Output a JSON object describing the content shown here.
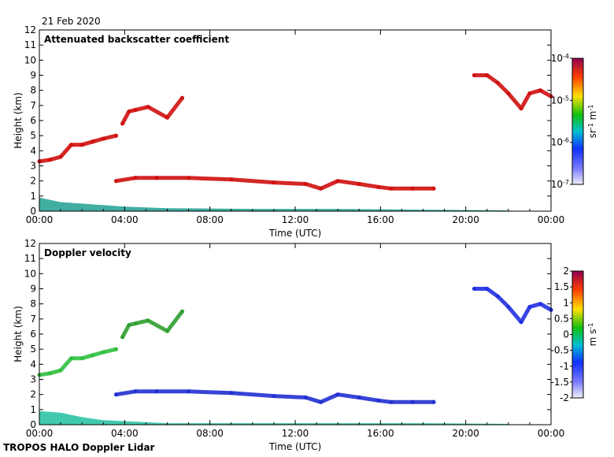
{
  "date_label": "21 Feb 2020",
  "footer": "TROPOS HALO Doppler Lidar",
  "colors": {
    "cloud_red": "#d01010",
    "aerosol_teal": "#20a090",
    "velocity_blue": "#2020e0"
  },
  "chart_data": [
    {
      "type": "heatmap",
      "title": "Attenuated backscatter coefficient",
      "xlabel": "Time (UTC)",
      "ylabel": "Height (km)",
      "x_ticks": [
        "00:00",
        "04:00",
        "08:00",
        "12:00",
        "16:00",
        "20:00",
        "00:00"
      ],
      "xlim_hours": [
        0,
        24
      ],
      "ylim": [
        0,
        12
      ],
      "y_ticks": [
        0,
        1,
        2,
        3,
        4,
        5,
        6,
        7,
        8,
        9,
        10,
        11,
        12
      ],
      "colorbar": {
        "scale": "log",
        "range": [
          1e-07,
          0.0001
        ],
        "tick_labels": [
          "10-4",
          "10-5",
          "10-6",
          "10-7"
        ],
        "unit": "sr-1 m-1"
      },
      "features": [
        {
          "name": "aerosol boundary layer",
          "color": "#20a090",
          "points": [
            [
              0,
              0.9
            ],
            [
              1,
              0.6
            ],
            [
              2,
              0.5
            ],
            [
              3,
              0.4
            ],
            [
              4,
              0.3
            ],
            [
              6,
              0.2
            ],
            [
              10,
              0.15
            ],
            [
              14,
              0.15
            ],
            [
              18,
              0.1
            ],
            [
              22,
              0.05
            ]
          ]
        },
        {
          "name": "mid-level cloud layer",
          "color": "#d01010",
          "points": [
            [
              3.6,
              2.0
            ],
            [
              4.5,
              2.2
            ],
            [
              5.5,
              2.2
            ],
            [
              7,
              2.2
            ],
            [
              9,
              2.1
            ],
            [
              11,
              1.9
            ],
            [
              12.5,
              1.8
            ],
            [
              13.2,
              1.5
            ],
            [
              14,
              2.0
            ],
            [
              15,
              1.8
            ],
            [
              15.9,
              1.6
            ],
            [
              16.5,
              1.5
            ],
            [
              17.5,
              1.5
            ],
            [
              18.5,
              1.5
            ]
          ]
        },
        {
          "name": "rising cloud layer",
          "color": "#d01010",
          "points": [
            [
              0,
              3.3
            ],
            [
              0.5,
              3.4
            ],
            [
              1,
              3.6
            ],
            [
              1.5,
              4.4
            ],
            [
              2,
              4.4
            ],
            [
              2.5,
              4.6
            ],
            [
              3,
              4.8
            ],
            [
              3.6,
              5.0
            ]
          ]
        },
        {
          "name": "upper cloud patches",
          "color": "#d01010",
          "points": [
            [
              3.9,
              5.8
            ],
            [
              4.2,
              6.6
            ],
            [
              4.5,
              6.7
            ],
            [
              5.1,
              6.9
            ],
            [
              6.0,
              6.2
            ],
            [
              6.7,
              7.5
            ]
          ]
        },
        {
          "name": "upper cloud layer",
          "color": "#d01010",
          "points": [
            [
              20.4,
              9.0
            ],
            [
              21,
              9.0
            ],
            [
              21.5,
              8.5
            ],
            [
              22,
              7.8
            ],
            [
              22.6,
              6.8
            ],
            [
              23,
              7.8
            ],
            [
              23.5,
              8.0
            ],
            [
              24,
              7.6
            ]
          ]
        }
      ]
    },
    {
      "type": "heatmap",
      "title": "Doppler velocity",
      "xlabel": "Time (UTC)",
      "ylabel": "Height (km)",
      "x_ticks": [
        "00:00",
        "04:00",
        "08:00",
        "12:00",
        "16:00",
        "20:00",
        "00:00"
      ],
      "xlim_hours": [
        0,
        24
      ],
      "ylim": [
        0,
        12
      ],
      "y_ticks": [
        0,
        1,
        2,
        3,
        4,
        5,
        6,
        7,
        8,
        9,
        10,
        11,
        12
      ],
      "colorbar": {
        "scale": "linear",
        "range": [
          -2,
          2
        ],
        "tick_labels": [
          "2",
          "1.5",
          "1",
          "0.5",
          "0",
          "-0.5",
          "-1",
          "-1.5",
          "-2"
        ],
        "unit": "m s-1"
      },
      "features": [
        {
          "name": "boundary layer velocities",
          "color": "#20c0a0",
          "points": [
            [
              0,
              0.9
            ],
            [
              1,
              0.8
            ],
            [
              2,
              0.5
            ],
            [
              3,
              0.3
            ],
            [
              6,
              0.1
            ],
            [
              10,
              0.1
            ],
            [
              14,
              0.1
            ],
            [
              18,
              0.1
            ],
            [
              22,
              0.05
            ]
          ]
        },
        {
          "name": "mid-level cloud velocities",
          "color": "#2030d0",
          "points": [
            [
              3.6,
              2.0
            ],
            [
              4.5,
              2.2
            ],
            [
              5.5,
              2.2
            ],
            [
              7,
              2.2
            ],
            [
              9,
              2.1
            ],
            [
              11,
              1.9
            ],
            [
              12.5,
              1.8
            ],
            [
              13.2,
              1.5
            ],
            [
              14,
              2.0
            ],
            [
              15,
              1.8
            ],
            [
              15.9,
              1.6
            ],
            [
              16.5,
              1.5
            ],
            [
              17.5,
              1.5
            ],
            [
              18.5,
              1.5
            ]
          ]
        },
        {
          "name": "rising layer velocities",
          "color": "#30c040",
          "points": [
            [
              0,
              3.3
            ],
            [
              0.5,
              3.4
            ],
            [
              1,
              3.6
            ],
            [
              1.5,
              4.4
            ],
            [
              2,
              4.4
            ],
            [
              2.5,
              4.6
            ],
            [
              3,
              4.8
            ],
            [
              3.6,
              5.0
            ]
          ]
        },
        {
          "name": "upper patch velocities",
          "color": "#30a030",
          "points": [
            [
              3.9,
              5.8
            ],
            [
              4.2,
              6.6
            ],
            [
              4.5,
              6.7
            ],
            [
              5.1,
              6.9
            ],
            [
              6.0,
              6.2
            ],
            [
              6.7,
              7.5
            ]
          ]
        },
        {
          "name": "upper layer velocities",
          "color": "#2030e0",
          "points": [
            [
              20.4,
              9.0
            ],
            [
              21,
              9.0
            ],
            [
              21.5,
              8.5
            ],
            [
              22,
              7.8
            ],
            [
              22.6,
              6.8
            ],
            [
              23,
              7.8
            ],
            [
              23.5,
              8.0
            ],
            [
              24,
              7.6
            ]
          ]
        }
      ]
    }
  ]
}
